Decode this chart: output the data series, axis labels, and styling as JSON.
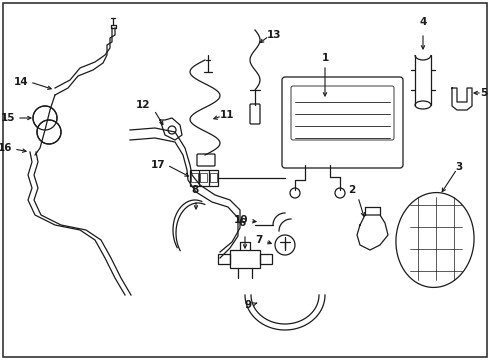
{
  "bg_color": "#ffffff",
  "line_color": "#1a1a1a",
  "figsize": [
    4.9,
    3.6
  ],
  "dpi": 100,
  "lw": 0.9
}
